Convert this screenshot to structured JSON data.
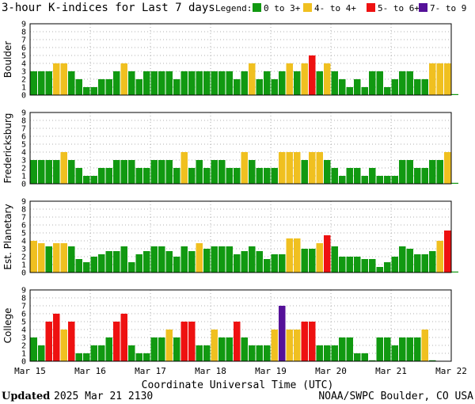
{
  "chart_data": {
    "type": "bar",
    "title": "3-hour K-indices for Last 7 days",
    "legend": {
      "title": "Legend:",
      "placement": "top-right",
      "items": [
        {
          "label": "0 to 3+",
          "color": "#119911"
        },
        {
          "label": "4- to 4+",
          "color": "#f0c020"
        },
        {
          "label": "5- to 6+",
          "color": "#ee1111"
        },
        {
          "label": "7- to 9",
          "color": "#551199"
        }
      ]
    },
    "ylim": [
      0,
      9
    ],
    "yticks": [
      "0",
      "1",
      "2",
      "3",
      "4",
      "5",
      "6",
      "7",
      "8",
      "9"
    ],
    "xlabel": "Coordinate Universal Time (UTC)",
    "xticks": [
      "Mar 15",
      "Mar 16",
      "Mar 17",
      "Mar 18",
      "Mar 19",
      "Mar 20",
      "Mar 21",
      "Mar 22"
    ],
    "grid": true,
    "panels": [
      {
        "name": "Boulder",
        "values": [
          3,
          3,
          3,
          4,
          4,
          3,
          2,
          1,
          1,
          2,
          2,
          3,
          4,
          3,
          2,
          3,
          3,
          3,
          3,
          2,
          3,
          3,
          3,
          3,
          3,
          3,
          3,
          2,
          3,
          4,
          2,
          3,
          2,
          3,
          4,
          3,
          4,
          5,
          3,
          4,
          3,
          2,
          1,
          2,
          1,
          3,
          3,
          1,
          2,
          3,
          3,
          2,
          2,
          4,
          4,
          4,
          0
        ]
      },
      {
        "name": "Fredericksburg",
        "values": [
          3,
          3,
          3,
          3,
          4,
          3,
          2,
          1,
          1,
          2,
          2,
          3,
          3,
          3,
          2,
          2,
          3,
          3,
          3,
          2,
          4,
          2,
          3,
          2,
          3,
          3,
          2,
          2,
          4,
          3,
          2,
          2,
          2,
          4,
          4,
          4,
          3,
          4,
          4,
          3,
          2,
          1,
          2,
          2,
          1,
          2,
          1,
          1,
          1,
          3,
          3,
          2,
          2,
          3,
          3,
          4,
          0
        ]
      },
      {
        "name": "Est. Planetary",
        "values": [
          4,
          3.7,
          3.3,
          3.7,
          3.7,
          3.3,
          1.7,
          1.3,
          2,
          2.3,
          2.7,
          2.7,
          3.3,
          1.3,
          2.3,
          2.7,
          3.3,
          3.3,
          2.7,
          2,
          3.3,
          2.7,
          3.7,
          3,
          3.3,
          3.3,
          3.3,
          2.3,
          2.7,
          3.3,
          2.7,
          1.7,
          2.3,
          2.3,
          4.3,
          4.3,
          3,
          3,
          3.7,
          4.7,
          3.3,
          2,
          2,
          2,
          1.7,
          1.7,
          0.7,
          1.3,
          2,
          3.3,
          3,
          2.3,
          2.3,
          2.7,
          4,
          5.3,
          0
        ]
      },
      {
        "name": "College",
        "values": [
          3,
          2,
          5,
          6,
          4,
          5,
          1,
          1,
          2,
          2,
          3,
          5,
          6,
          2,
          1,
          1,
          3,
          3,
          4,
          3,
          5,
          5,
          2,
          2,
          4,
          3,
          3,
          5,
          3,
          2,
          2,
          2,
          4,
          7,
          4,
          4,
          5,
          5,
          2,
          2,
          2,
          3,
          3,
          1,
          1,
          0,
          3,
          3,
          2,
          3,
          3,
          3,
          4,
          0
        ]
      }
    ]
  },
  "footer": {
    "updated_label": "Updated",
    "updated_value": "2025 Mar 21 2130",
    "credit": "NOAA/SWPC Boulder, CO USA"
  }
}
